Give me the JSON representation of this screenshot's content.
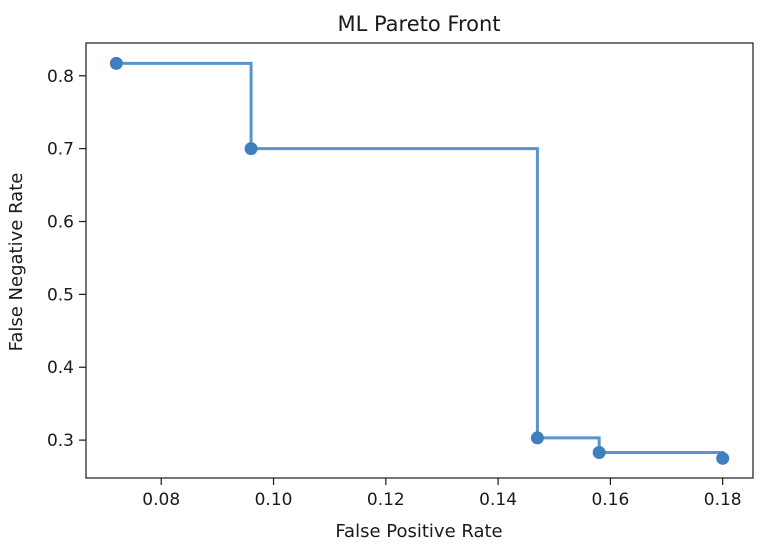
{
  "chart_data": {
    "type": "line",
    "title": "ML Pareto Front",
    "xlabel": "False Positive Rate",
    "ylabel": "False Negative Rate",
    "xlim": [
      0.0666,
      0.1854
    ],
    "ylim": [
      0.248,
      0.845
    ],
    "xticks": [
      0.08,
      0.1,
      0.12,
      0.14,
      0.16,
      0.18
    ],
    "xtick_labels": [
      "0.08",
      "0.10",
      "0.12",
      "0.14",
      "0.16",
      "0.18"
    ],
    "yticks": [
      0.3,
      0.4,
      0.5,
      0.6,
      0.7,
      0.8
    ],
    "ytick_labels": [
      "0.3",
      "0.4",
      "0.5",
      "0.6",
      "0.7",
      "0.8"
    ],
    "step": "post",
    "markers": true,
    "grid": false,
    "series": [
      {
        "x": [
          0.072,
          0.096,
          0.147,
          0.158,
          0.18
        ],
        "y": [
          0.817,
          0.7,
          0.303,
          0.283,
          0.275
        ],
        "color": "#3f7ebf",
        "line_color": "#5b93cc"
      }
    ]
  }
}
